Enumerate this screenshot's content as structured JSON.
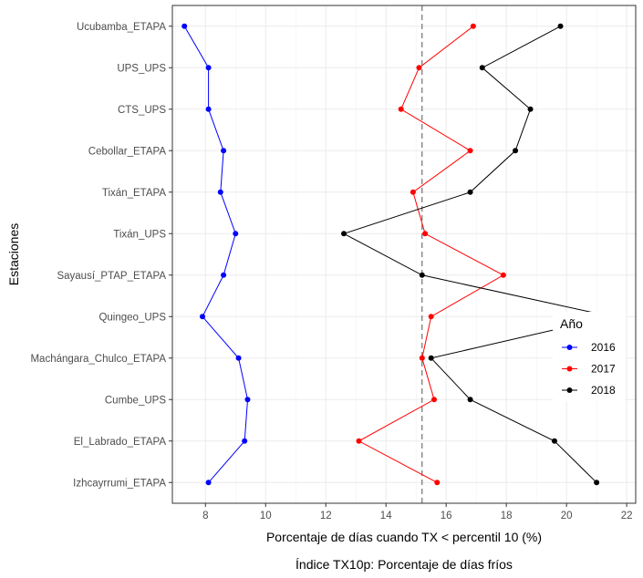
{
  "chart_data": {
    "type": "line",
    "xlabel": "Porcentaje de días cuando TX < percentil 10 (%)",
    "ylabel": "Estaciones",
    "caption": "Índice TX10p: Porcentaje de días fríos",
    "xlim": [
      6.9,
      22.3
    ],
    "xticks": [
      8,
      10,
      12,
      14,
      16,
      18,
      20,
      22
    ],
    "reference_line_x": 15.2,
    "grid": true,
    "legend": {
      "title": "Año",
      "placement": "right"
    },
    "categories": [
      "Ucubamba_ETAPA",
      "UPS_UPS",
      "CTS_UPS",
      "Cebollar_ETAPA",
      "Tixán_ETAPA",
      "Tixán_UPS",
      "Sayausí_PTAP_ETAPA",
      "Quingeo_UPS",
      "Machángara_Chulco_ETAPA",
      "Cumbe_UPS",
      "El_Labrado_ETAPA",
      "Izhcayrrumi_ETAPA"
    ],
    "series": [
      {
        "name": "2016",
        "color": "#0000ff",
        "values": [
          7.3,
          8.1,
          8.1,
          8.6,
          8.5,
          9.0,
          8.6,
          7.9,
          9.1,
          9.4,
          9.3,
          8.1
        ]
      },
      {
        "name": "2017",
        "color": "#ff0000",
        "values": [
          16.9,
          15.1,
          14.5,
          16.8,
          14.9,
          15.3,
          17.9,
          15.5,
          15.2,
          15.6,
          13.1,
          15.7
        ]
      },
      {
        "name": "2018",
        "color": "#000000",
        "values": [
          19.8,
          17.2,
          18.8,
          18.3,
          16.8,
          12.6,
          15.2,
          21.5,
          15.5,
          16.8,
          19.6,
          21.0
        ]
      }
    ]
  }
}
